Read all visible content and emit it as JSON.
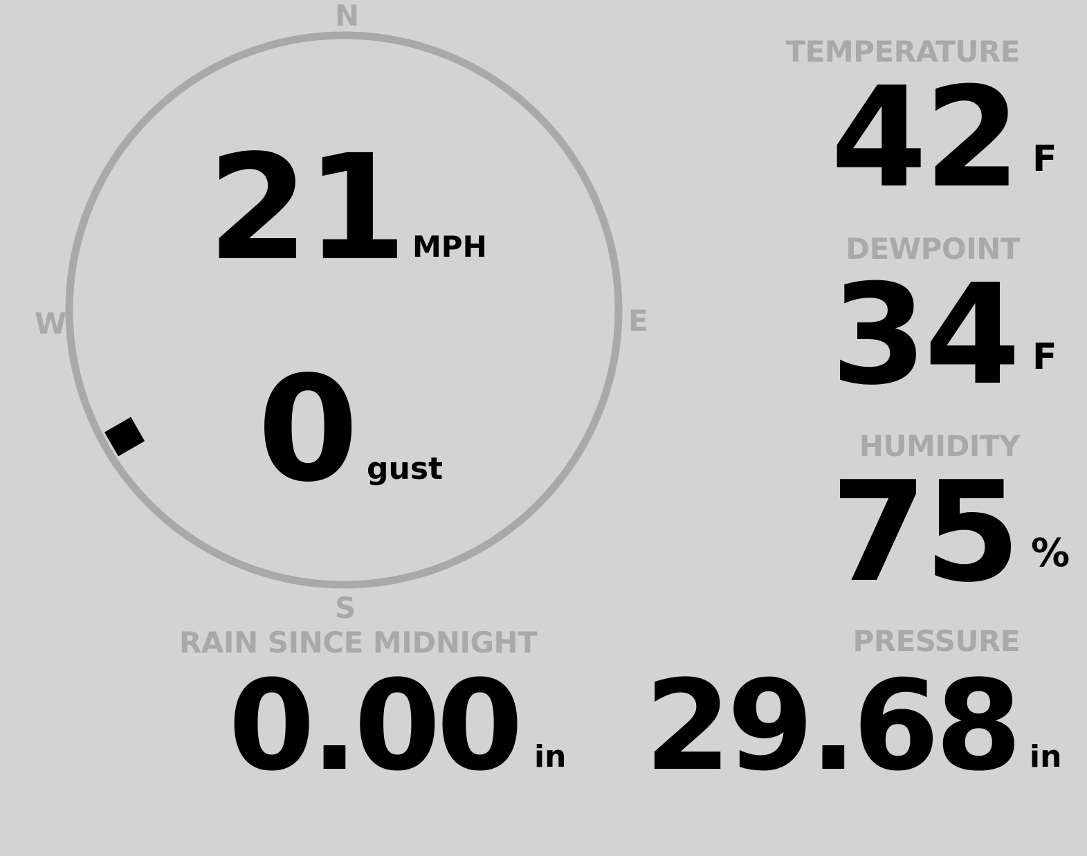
{
  "colors": {
    "background": "#d3d3d3",
    "label": "#a9a9a9",
    "value": "#000000",
    "ring": "#a9a9a9"
  },
  "wind": {
    "compass": {
      "n": "N",
      "e": "E",
      "s": "S",
      "w": "W"
    },
    "direction_degrees": 240,
    "speed": "21",
    "speed_unit": "MPH",
    "gust": "0",
    "gust_unit": "gust"
  },
  "temperature": {
    "label": "TEMPERATURE",
    "value": "42",
    "unit": "F"
  },
  "dewpoint": {
    "label": "DEWPOINT",
    "value": "34",
    "unit": "F"
  },
  "humidity": {
    "label": "HUMIDITY",
    "value": "75",
    "unit": "%"
  },
  "rain": {
    "label": "RAIN SINCE MIDNIGHT",
    "value": "0.00",
    "unit": "in"
  },
  "pressure": {
    "label": "PRESSURE",
    "value": "29.68",
    "unit": "in"
  }
}
